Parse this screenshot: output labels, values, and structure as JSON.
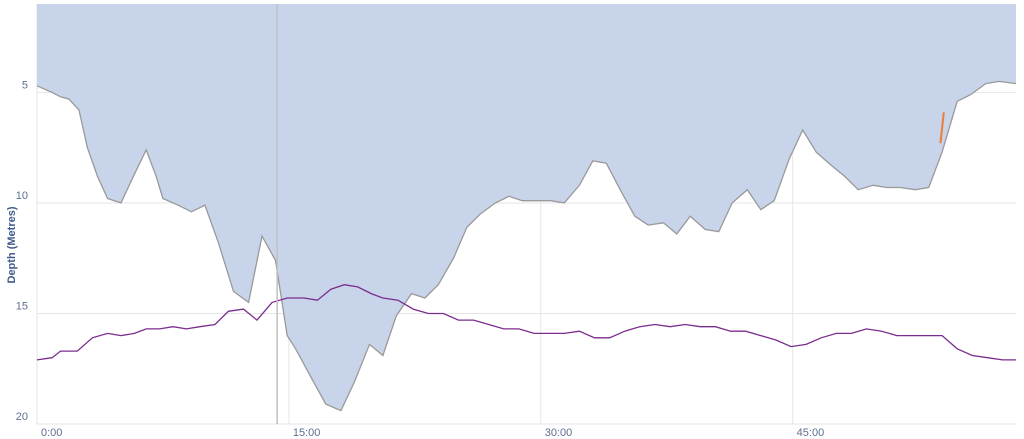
{
  "chart_data": {
    "type": "area",
    "title": "",
    "ylabel": "Depth (Metres)",
    "xlabel": "",
    "y_inverted": true,
    "ylim": [
      1.0,
      20.0
    ],
    "xlim": [
      0,
      58.3
    ],
    "grid": true,
    "y_ticks": [
      "5",
      "10",
      "15",
      "20"
    ],
    "x_ticks": [
      "0:00",
      "15:00",
      "30:00",
      "45:00"
    ],
    "colors": {
      "area_fill": "#c8d4ea",
      "depth_line": "#999999",
      "temp_line": "#7b2d8e",
      "highlight": "#ef7d3a",
      "cursor": "#bfbfbf",
      "grid": "#e6e6e6"
    },
    "cursor_time_min": 14.3,
    "series": [
      {
        "role": "depth",
        "x": [
          0.0,
          0.9,
          1.4,
          1.9,
          2.5,
          3.0,
          3.6,
          4.2,
          5.0,
          5.8,
          6.5,
          7.1,
          7.5,
          8.4,
          9.2,
          10.0,
          10.8,
          11.7,
          12.6,
          13.4,
          14.2,
          14.9,
          15.4,
          16.4,
          17.2,
          18.1,
          18.9,
          19.8,
          20.6,
          21.4,
          22.3,
          23.1,
          23.9,
          24.8,
          25.6,
          26.4,
          27.3,
          28.1,
          28.9,
          29.8,
          30.6,
          31.4,
          32.3,
          33.1,
          33.9,
          34.8,
          35.6,
          36.4,
          37.3,
          38.1,
          38.9,
          39.8,
          40.6,
          41.4,
          42.3,
          43.1,
          43.9,
          44.8,
          45.6,
          46.4,
          47.3,
          48.1,
          48.9,
          49.8,
          50.6,
          51.4,
          52.3,
          53.1,
          53.9,
          54.8,
          55.6,
          56.5,
          57.3,
          58.3
        ],
        "values": [
          4.7,
          5.0,
          5.2,
          5.3,
          5.8,
          7.5,
          8.8,
          9.8,
          10.0,
          8.7,
          7.6,
          8.8,
          9.8,
          10.1,
          10.4,
          10.1,
          11.8,
          14.0,
          14.5,
          11.5,
          12.6,
          16.0,
          16.6,
          18.0,
          19.1,
          19.4,
          18.1,
          16.4,
          16.9,
          15.1,
          14.1,
          14.3,
          13.7,
          12.5,
          11.1,
          10.5,
          10.0,
          9.7,
          9.9,
          9.9,
          9.9,
          10.0,
          9.2,
          8.1,
          8.2,
          9.5,
          10.6,
          11.0,
          10.9,
          11.4,
          10.6,
          11.2,
          11.3,
          10.0,
          9.4,
          10.3,
          9.9,
          8.0,
          6.7,
          7.7,
          8.3,
          8.8,
          9.4,
          9.2,
          9.3,
          9.3,
          9.4,
          9.3,
          7.7,
          5.4,
          5.1,
          4.6,
          4.5,
          4.6
        ]
      },
      {
        "role": "temperature",
        "x": [
          0.0,
          0.9,
          1.4,
          2.4,
          3.3,
          4.2,
          5.0,
          5.8,
          6.5,
          7.3,
          8.1,
          8.9,
          9.7,
          10.6,
          11.4,
          12.3,
          13.1,
          14.0,
          14.9,
          15.9,
          16.7,
          17.5,
          18.3,
          19.1,
          19.9,
          20.6,
          21.5,
          22.4,
          23.3,
          24.2,
          25.1,
          26.0,
          26.9,
          27.8,
          28.7,
          29.6,
          30.5,
          31.4,
          32.3,
          33.2,
          34.1,
          35.0,
          35.9,
          36.8,
          37.7,
          38.6,
          39.5,
          40.4,
          41.3,
          42.2,
          43.1,
          44.0,
          44.9,
          45.8,
          46.7,
          47.6,
          48.5,
          49.4,
          50.3,
          51.2,
          52.1,
          53.0,
          53.9,
          54.8,
          55.7,
          56.6,
          57.5,
          58.3
        ],
        "values": [
          17.1,
          17.0,
          16.7,
          16.7,
          16.1,
          15.9,
          16.0,
          15.9,
          15.7,
          15.7,
          15.6,
          15.7,
          15.6,
          15.5,
          14.9,
          14.8,
          15.3,
          14.5,
          14.3,
          14.3,
          14.4,
          13.9,
          13.7,
          13.8,
          14.1,
          14.3,
          14.4,
          14.8,
          15.0,
          15.0,
          15.3,
          15.3,
          15.5,
          15.7,
          15.7,
          15.9,
          15.9,
          15.9,
          15.8,
          16.1,
          16.1,
          15.8,
          15.6,
          15.5,
          15.6,
          15.5,
          15.6,
          15.6,
          15.8,
          15.8,
          16.0,
          16.2,
          16.5,
          16.4,
          16.1,
          15.9,
          15.9,
          15.7,
          15.8,
          16.0,
          16.0,
          16.0,
          16.0,
          16.6,
          16.9,
          17.0,
          17.1,
          17.1
        ]
      }
    ],
    "highlight_segment": {
      "x": [
        53.8,
        54.0
      ],
      "values": [
        7.3,
        5.9
      ]
    }
  }
}
